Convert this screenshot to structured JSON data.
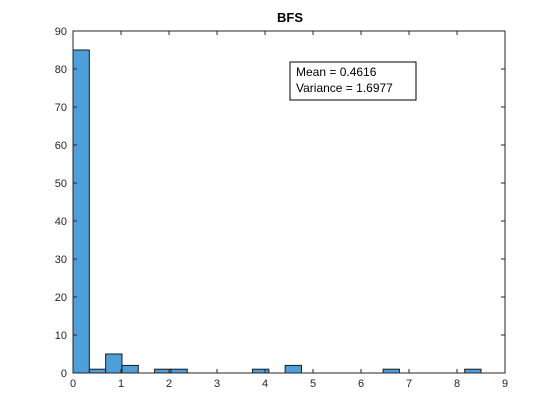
{
  "chart_data": {
    "type": "bar",
    "title": "BFS",
    "xlabel": "",
    "ylabel": "",
    "xlim": [
      0,
      9
    ],
    "ylim": [
      0,
      90
    ],
    "xticks": [
      0,
      1,
      2,
      3,
      4,
      5,
      6,
      7,
      8,
      9
    ],
    "yticks": [
      0,
      10,
      20,
      30,
      40,
      50,
      60,
      70,
      80,
      90
    ],
    "grid": false,
    "bin_width": 0.34,
    "bins": [
      {
        "x0": 0.0,
        "count": 85
      },
      {
        "x0": 0.34,
        "count": 1
      },
      {
        "x0": 0.68,
        "count": 5
      },
      {
        "x0": 1.02,
        "count": 2
      },
      {
        "x0": 1.7,
        "count": 1
      },
      {
        "x0": 2.04,
        "count": 1
      },
      {
        "x0": 3.74,
        "count": 1
      },
      {
        "x0": 4.42,
        "count": 2
      },
      {
        "x0": 6.46,
        "count": 1
      },
      {
        "x0": 8.16,
        "count": 1
      }
    ],
    "bar_color": "#4d9fd9",
    "bar_edge_color": "#1a1a1a",
    "annotation": {
      "lines": [
        "Mean = 0.4616",
        "Variance = 1.6977"
      ],
      "placement": "top-right"
    }
  }
}
